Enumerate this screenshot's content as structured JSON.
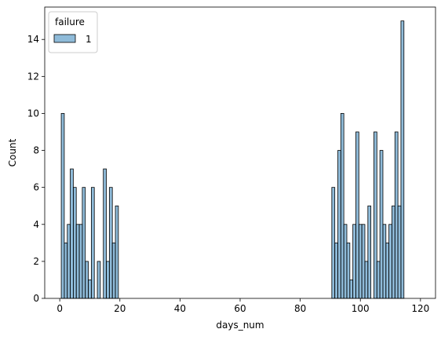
{
  "chart_data": {
    "type": "bar",
    "title": "",
    "xlabel": "days_num",
    "ylabel": "Count",
    "xlim": [
      -5,
      125
    ],
    "ylim": [
      0,
      15.75
    ],
    "xticks": [
      0,
      20,
      40,
      60,
      80,
      100,
      120
    ],
    "yticks": [
      0,
      2,
      4,
      6,
      8,
      10,
      12,
      14
    ],
    "bin_width": 1,
    "grid": false,
    "legend": {
      "title": "failure",
      "position": "top-left",
      "entries": [
        "1"
      ]
    },
    "series": [
      {
        "name": "1",
        "color": "#1f77b4",
        "bins": [
          {
            "x": 1,
            "count": 10
          },
          {
            "x": 2,
            "count": 3
          },
          {
            "x": 3,
            "count": 4
          },
          {
            "x": 4,
            "count": 7
          },
          {
            "x": 5,
            "count": 6
          },
          {
            "x": 6,
            "count": 4
          },
          {
            "x": 7,
            "count": 4
          },
          {
            "x": 8,
            "count": 6
          },
          {
            "x": 9,
            "count": 2
          },
          {
            "x": 10,
            "count": 1
          },
          {
            "x": 11,
            "count": 6
          },
          {
            "x": 13,
            "count": 2
          },
          {
            "x": 15,
            "count": 7
          },
          {
            "x": 16,
            "count": 2
          },
          {
            "x": 17,
            "count": 6
          },
          {
            "x": 18,
            "count": 3
          },
          {
            "x": 19,
            "count": 5
          },
          {
            "x": 91,
            "count": 6
          },
          {
            "x": 92,
            "count": 3
          },
          {
            "x": 93,
            "count": 8
          },
          {
            "x": 94,
            "count": 10
          },
          {
            "x": 95,
            "count": 4
          },
          {
            "x": 96,
            "count": 3
          },
          {
            "x": 97,
            "count": 1
          },
          {
            "x": 98,
            "count": 4
          },
          {
            "x": 99,
            "count": 9
          },
          {
            "x": 100,
            "count": 4
          },
          {
            "x": 101,
            "count": 4
          },
          {
            "x": 102,
            "count": 2
          },
          {
            "x": 103,
            "count": 5
          },
          {
            "x": 105,
            "count": 9
          },
          {
            "x": 106,
            "count": 2
          },
          {
            "x": 107,
            "count": 8
          },
          {
            "x": 108,
            "count": 4
          },
          {
            "x": 109,
            "count": 3
          },
          {
            "x": 110,
            "count": 4
          },
          {
            "x": 111,
            "count": 5
          },
          {
            "x": 112,
            "count": 9
          },
          {
            "x": 113,
            "count": 5
          },
          {
            "x": 114,
            "count": 15
          }
        ]
      }
    ]
  }
}
